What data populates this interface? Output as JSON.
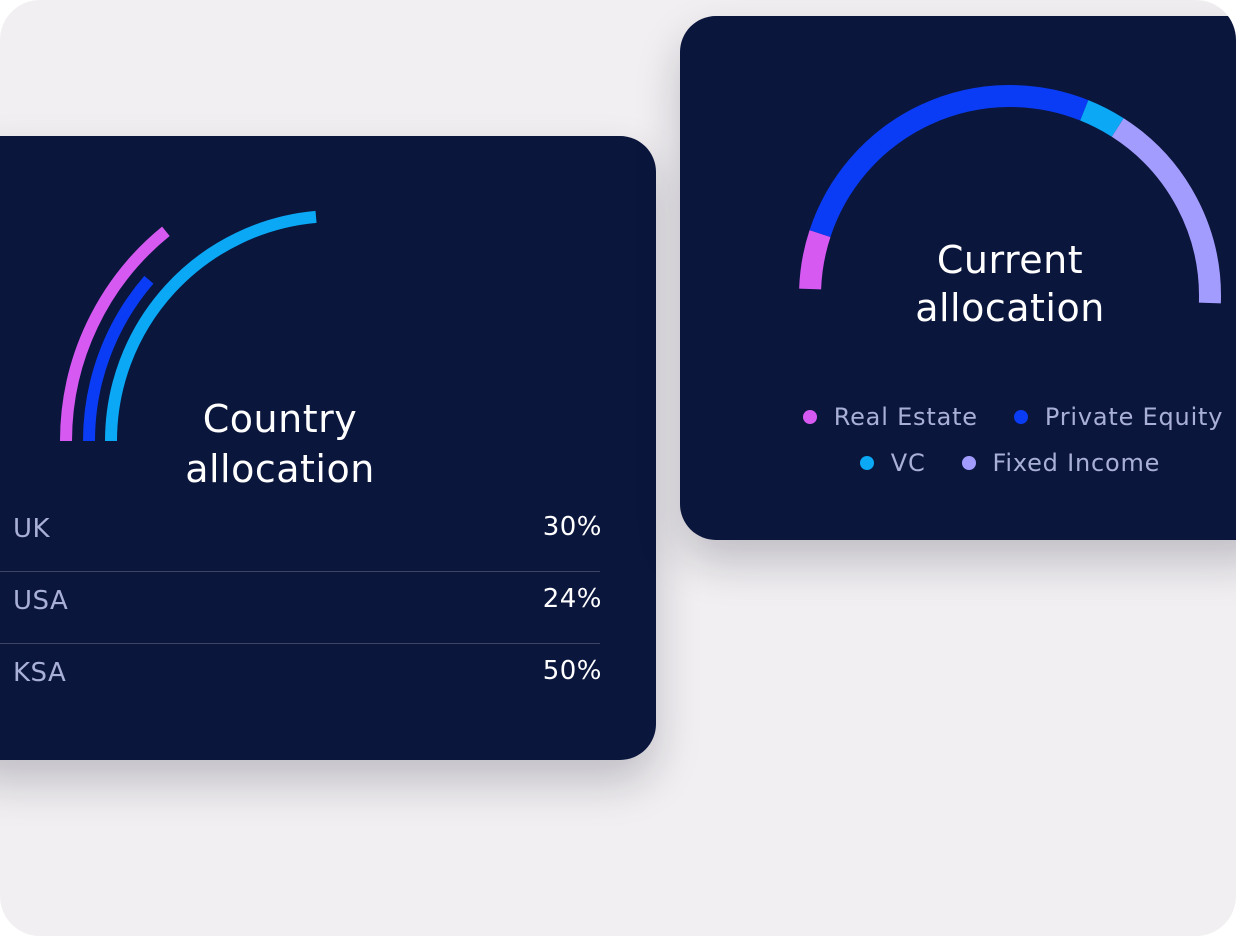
{
  "country_card": {
    "title_line1": "Country",
    "title_line2": "allocation",
    "rows": [
      {
        "name": "UK",
        "value": "30%",
        "color": "#d65af2"
      },
      {
        "name": "USA",
        "value": "24%",
        "color": "#0a3cf5"
      },
      {
        "name": "KSA",
        "value": "50%",
        "color": "#0aa8f5"
      }
    ]
  },
  "current_card": {
    "title_line1": "Current",
    "title_line2": "allocation",
    "segments": [
      {
        "name": "Real Estate",
        "color": "#d65af2",
        "fraction": 0.09
      },
      {
        "name": "Private Equity",
        "color": "#0a3cf5",
        "fraction": 0.52
      },
      {
        "name": "VC",
        "color": "#0aa8f5",
        "fraction": 0.06
      },
      {
        "name": "Fixed Income",
        "color": "#a39cff",
        "fraction": 0.33
      }
    ]
  }
}
